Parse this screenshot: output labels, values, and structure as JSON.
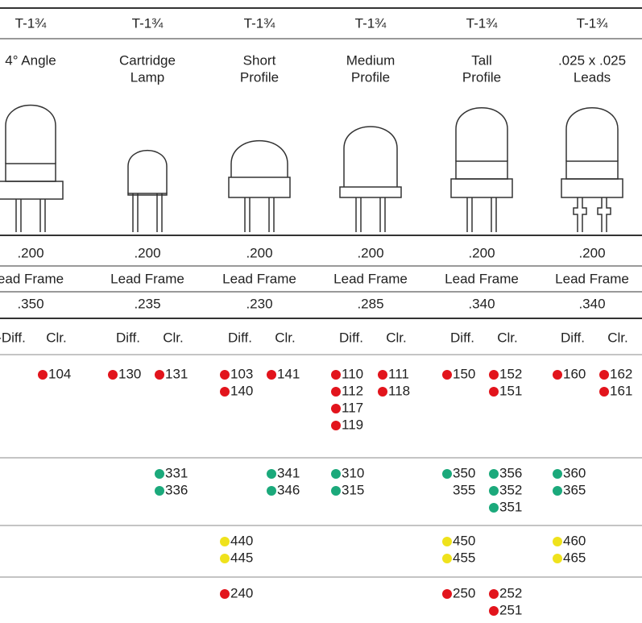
{
  "columns": [
    {
      "package": "T-1¾",
      "name": [
        "4° Angle"
      ],
      "spacing": ".200",
      "frame": "ead Frame",
      "size": ".350",
      "diff": "-Diff.",
      "clr": "Clr.",
      "groups": [
        {
          "diff": [],
          "clr": [
            "104"
          ]
        },
        {
          "diff": [],
          "clr": []
        },
        {
          "diff": [],
          "clr": []
        },
        {
          "diff": [],
          "clr": []
        }
      ]
    },
    {
      "package": "T-1¾",
      "name": [
        "Cartridge",
        "Lamp"
      ],
      "spacing": ".200",
      "frame": "Lead Frame",
      "size": ".235",
      "diff": "Diff.",
      "clr": "Clr.",
      "groups": [
        {
          "diff": [
            "130"
          ],
          "clr": [
            "131"
          ]
        },
        {
          "diff": [],
          "clr": [
            "331",
            "336"
          ]
        },
        {
          "diff": [],
          "clr": []
        },
        {
          "diff": [],
          "clr": []
        }
      ]
    },
    {
      "package": "T-1¾",
      "name": [
        "Short",
        "Profile"
      ],
      "spacing": ".200",
      "frame": "Lead Frame",
      "size": ".230",
      "diff": "Diff.",
      "clr": "Clr.",
      "groups": [
        {
          "diff": [
            "103",
            "140"
          ],
          "clr": [
            "141"
          ]
        },
        {
          "diff": [],
          "clr": [
            "341",
            "346"
          ]
        },
        {
          "diff": [
            "440",
            "445"
          ],
          "clr": []
        },
        {
          "diff": [
            "240"
          ],
          "clr": []
        }
      ]
    },
    {
      "package": "T-1¾",
      "name": [
        "Medium",
        "Profile"
      ],
      "spacing": ".200",
      "frame": "Lead Frame",
      "size": ".285",
      "diff": "Diff.",
      "clr": "Clr.",
      "groups": [
        {
          "diff": [
            "110",
            "112",
            "117",
            "119"
          ],
          "clr": [
            "111",
            "118"
          ]
        },
        {
          "diff": [
            "310",
            "315"
          ],
          "clr": []
        },
        {
          "diff": [],
          "clr": []
        },
        {
          "diff": [],
          "clr": []
        }
      ]
    },
    {
      "package": "T-1¾",
      "name": [
        "Tall",
        "Profile"
      ],
      "spacing": ".200",
      "frame": "Lead Frame",
      "size": ".340",
      "diff": "Diff.",
      "clr": "Clr.",
      "groups": [
        {
          "diff": [
            "150"
          ],
          "clr": [
            "152",
            "151"
          ]
        },
        {
          "diff": [
            "350",
            {
              "text": "355",
              "dot": false
            }
          ],
          "clr": [
            "356",
            "352",
            "351"
          ]
        },
        {
          "diff": [
            "450",
            "455"
          ],
          "clr": []
        },
        {
          "diff": [
            "250"
          ],
          "clr": [
            "252",
            "251"
          ]
        }
      ]
    },
    {
      "package": "T-1¾",
      "name": [
        ".025 x .025",
        "Leads"
      ],
      "spacing": ".200",
      "frame": "Lead Frame",
      "size": ".340",
      "diff": "Diff.",
      "clr": "Clr.",
      "groups": [
        {
          "diff": [
            "160"
          ],
          "clr": [
            "162",
            "161"
          ]
        },
        {
          "diff": [
            "360",
            "365"
          ],
          "clr": []
        },
        {
          "diff": [
            "460",
            "465"
          ],
          "clr": []
        },
        {
          "diff": [],
          "clr": []
        }
      ]
    }
  ],
  "group_colors": [
    "#e2141c",
    "#1ba97b",
    "#efe21c",
    "#e2141c"
  ]
}
